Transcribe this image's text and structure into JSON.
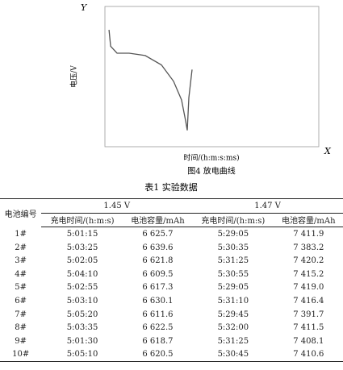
{
  "chart_data": {
    "type": "line",
    "title": "图4  放电曲线",
    "xlabel": "时间/(h:m:s:ms)",
    "ylabel": "电压/V",
    "y_axis_name": "Y",
    "x_axis_name": "X",
    "x": [
      0.23,
      0.32,
      0.68,
      1.36,
      2.26,
      3.17,
      3.85,
      4.3,
      4.53,
      4.62,
      4.71,
      4.89
    ],
    "series": [
      {
        "name": "放电曲线",
        "color": "#555555",
        "values": [
          1.4,
          1.33,
          1.3,
          1.3,
          1.29,
          1.25,
          1.18,
          1.1,
          1.01,
          0.97,
          1.11,
          1.23
        ]
      }
    ],
    "xlim": [
      0,
      12
    ],
    "ylim": [
      0.9,
      1.5
    ]
  },
  "table": {
    "title": "表1  实验数据",
    "groups": [
      "1.45 V",
      "1.47 V"
    ],
    "header": [
      "电池编号",
      "充电时间/(h:m:s)",
      "电池容量/mAh",
      "充电时间/(h:m:s)",
      "电池容量/mAh"
    ],
    "rows": [
      [
        "1#",
        "5:01:15",
        "6 625.7",
        "5:29:05",
        "7 411.9"
      ],
      [
        "2#",
        "5:03:25",
        "6 639.6",
        "5:30:35",
        "7 383.2"
      ],
      [
        "3#",
        "5:02:05",
        "6 621.8",
        "5:31:25",
        "7 420.2"
      ],
      [
        "4#",
        "5:04:10",
        "6 609.5",
        "5:30:55",
        "7 415.2"
      ],
      [
        "5#",
        "5:02:55",
        "6 617.3",
        "5:29:05",
        "7 419.0"
      ],
      [
        "6#",
        "5:03:10",
        "6 630.1",
        "5:31:10",
        "7 416.4"
      ],
      [
        "7#",
        "5:05:20",
        "6 611.6",
        "5:29:45",
        "7 391.7"
      ],
      [
        "8#",
        "5:03:35",
        "6 622.5",
        "5:32:00",
        "7 411.5"
      ],
      [
        "9#",
        "5:01:30",
        "6 618.7",
        "5:31:25",
        "7 408.1"
      ],
      [
        "10#",
        "5:05:10",
        "6 620.5",
        "5:30:45",
        "7 410.6"
      ]
    ]
  }
}
